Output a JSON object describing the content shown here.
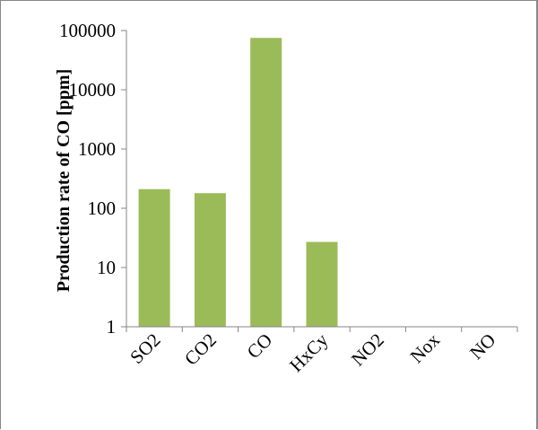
{
  "chart_data": {
    "type": "bar",
    "categories": [
      "SO2",
      "CO2",
      "CO",
      "HxCy",
      "NO2",
      "Nox",
      "NO"
    ],
    "values": [
      210,
      180,
      75000,
      27,
      0,
      0,
      0
    ],
    "title": "",
    "xlabel": "",
    "ylabel": "Production rate of CO [ppm]",
    "yscale": "log",
    "ylim": [
      1,
      100000
    ],
    "yticks": [
      1,
      10,
      100,
      1000,
      10000,
      100000
    ],
    "ytick_labels": [
      "1",
      "10",
      "100",
      "1000",
      "10000",
      "100000"
    ],
    "grid": false,
    "legend": "none",
    "bar_color": "#9bbb59",
    "axis_color": "#868686"
  }
}
